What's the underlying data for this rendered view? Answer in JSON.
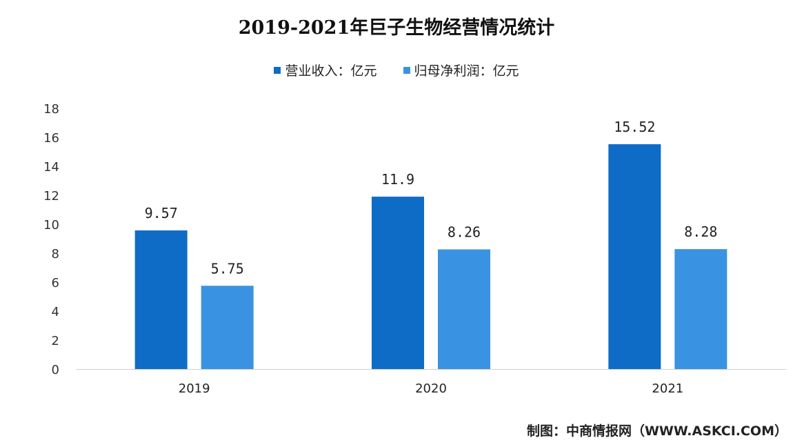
{
  "chart_data": {
    "type": "bar",
    "title": "2019-2021年巨子生物经营情况统计",
    "categories": [
      "2019",
      "2020",
      "2021"
    ],
    "series": [
      {
        "name": "营业收入：亿元",
        "values": [
          9.57,
          11.9,
          15.52
        ],
        "labels": [
          "9.57",
          "11.9",
          "15.52"
        ],
        "color": "#0F6CC6"
      },
      {
        "name": "归母净利润：亿元",
        "values": [
          5.75,
          8.26,
          8.28
        ],
        "labels": [
          "5.75",
          "8.26",
          "8.28"
        ],
        "color": "#3A93E2"
      }
    ],
    "ylim": [
      0,
      18
    ],
    "yticks": [
      "0",
      "2",
      "4",
      "6",
      "8",
      "10",
      "12",
      "14",
      "16",
      "18"
    ],
    "grid": false,
    "legend_position": "top"
  },
  "source": "制图：中商情报网（WWW.ASKCI.COM）"
}
